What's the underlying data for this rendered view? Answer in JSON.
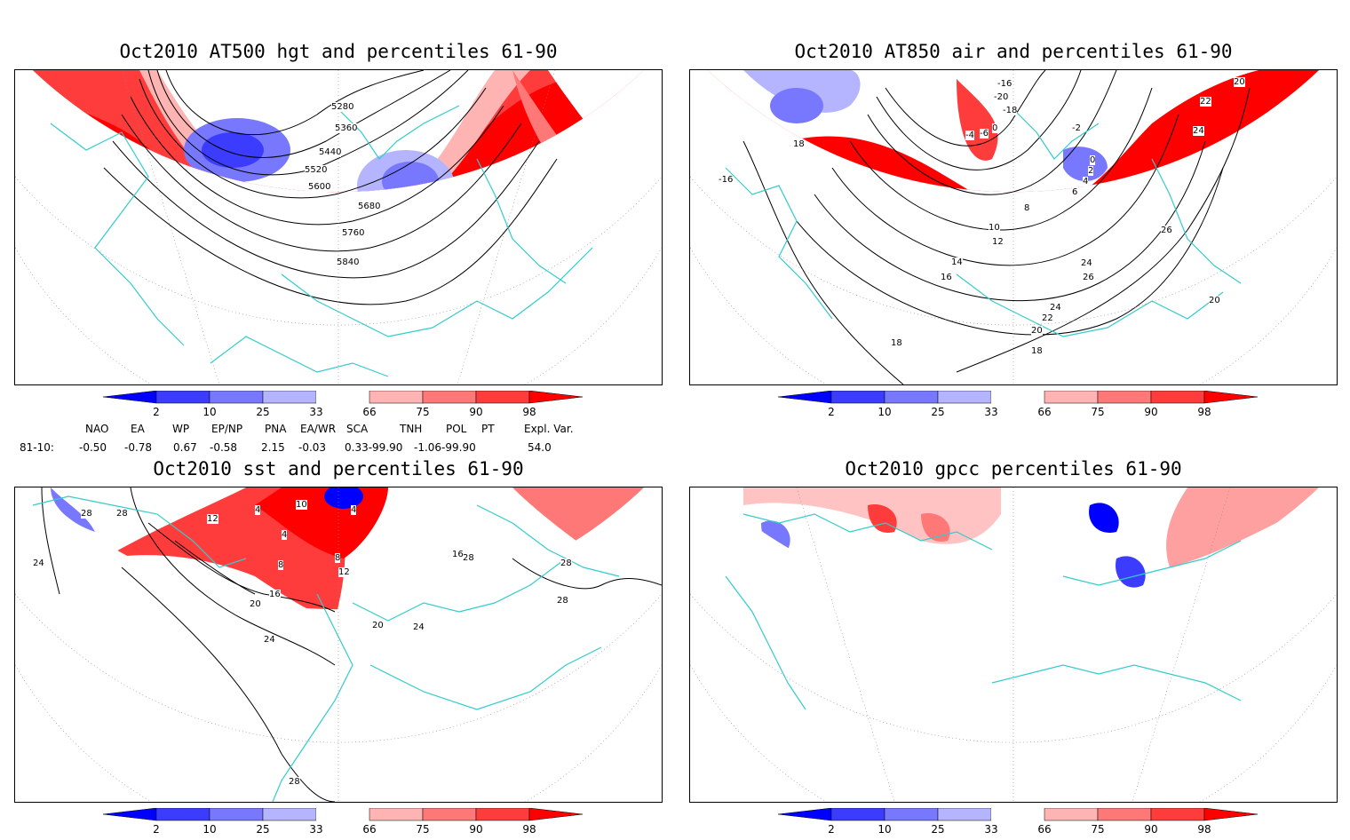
{
  "panels": [
    {
      "id": "hgt",
      "title": "Oct2010 AT500 hgt and percentiles 61-90",
      "labels": [
        "5280",
        "5360",
        "5440",
        "5520",
        "5600",
        "5680",
        "5760",
        "5840"
      ]
    },
    {
      "id": "air",
      "title": "Oct2010 AT850 air and percentiles 61-90",
      "labels": [
        "-16",
        "-20",
        "-18",
        "-4",
        "-6",
        "0",
        "-2",
        "0",
        "2",
        "4",
        "6",
        "8",
        "10",
        "12",
        "14",
        "16",
        "18",
        "-16",
        "20",
        "22",
        "24",
        "26",
        "24",
        "26",
        "20",
        "24",
        "22",
        "20",
        "18",
        "18"
      ]
    },
    {
      "id": "sst",
      "title": "Oct2010 sst and percentiles 61-90",
      "labels": [
        "28",
        "28",
        "12",
        "4",
        "10",
        "4",
        "4",
        "8",
        "8",
        "12",
        "16",
        "20",
        "24",
        "20",
        "24",
        "16",
        "28",
        "28",
        "28",
        "24",
        "28"
      ]
    },
    {
      "id": "gpcc",
      "title": "Oct2010 gpcc percentiles 61-90",
      "labels": []
    }
  ],
  "colorbar": {
    "ticks": [
      "2",
      "10",
      "25",
      "33",
      "66",
      "75",
      "90",
      "98"
    ],
    "colors": [
      "#0000ff",
      "#3c3cff",
      "#7878ff",
      "#b4b4ff",
      "#ffffff",
      "#ffb4b4",
      "#ff7878",
      "#ff3c3c",
      "#ff0000"
    ]
  },
  "indices": {
    "headers": [
      "NAO",
      "EA",
      "WP",
      "EP/NP",
      "PNA",
      "EA/WR",
      "SCA",
      "TNH",
      "POL",
      "PT",
      "Expl. Var."
    ],
    "row_label": "81-10:",
    "values": [
      "-0.50",
      "-0.78",
      "0.67",
      "-0.58",
      "2.15",
      "-0.03",
      "0.33-99.90",
      "-1.06-99.90",
      "54.0"
    ]
  },
  "colors": {
    "coast": "#33cccc",
    "red": "#ff0000",
    "blue": "#0000ff"
  }
}
